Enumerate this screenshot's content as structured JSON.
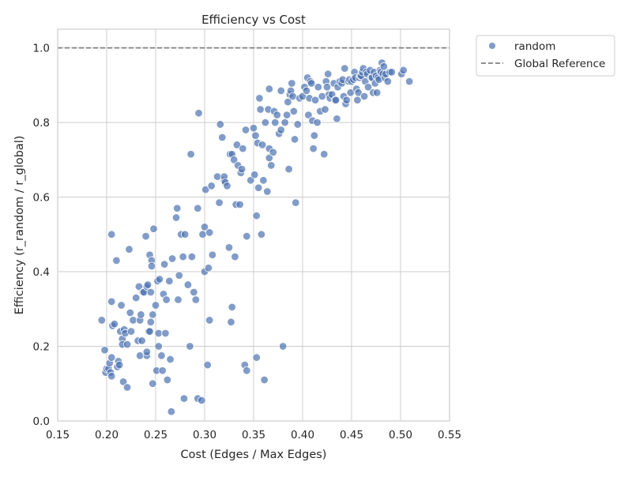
{
  "chart_data": {
    "type": "scatter",
    "title": "Efficiency vs Cost",
    "xlabel": "Cost (Edges / Max Edges)",
    "ylabel": "Efficiency (r_random / r_global)",
    "xlim": [
      0.15,
      0.55
    ],
    "ylim": [
      0.0,
      1.05
    ],
    "xticks": [
      0.15,
      0.2,
      0.25,
      0.3,
      0.35,
      0.4,
      0.45,
      0.5,
      0.55
    ],
    "xtick_labels": [
      "0.15",
      "0.20",
      "0.25",
      "0.30",
      "0.35",
      "0.40",
      "0.45",
      "0.50",
      "0.55"
    ],
    "yticks": [
      0.0,
      0.2,
      0.4,
      0.6,
      0.8,
      1.0
    ],
    "ytick_labels": [
      "0.0",
      "0.2",
      "0.4",
      "0.6",
      "0.8",
      "1.0"
    ],
    "grid": true,
    "legend_position": "outside-top-right",
    "legend": [
      {
        "label": "random",
        "kind": "marker",
        "color": "#4c72b0"
      },
      {
        "label": "Global Reference",
        "kind": "dashed-line",
        "color": "#808080"
      }
    ],
    "reference_line": {
      "name": "Global Reference",
      "y": 1.0,
      "color": "#808080",
      "style": "dashed"
    },
    "series": [
      {
        "name": "random",
        "color": "#4c72b0",
        "points": [
          [
            0.195,
            0.27
          ],
          [
            0.198,
            0.19
          ],
          [
            0.199,
            0.13
          ],
          [
            0.2,
            0.14
          ],
          [
            0.202,
            0.14
          ],
          [
            0.203,
            0.155
          ],
          [
            0.204,
            0.13
          ],
          [
            0.205,
            0.17
          ],
          [
            0.205,
            0.12
          ],
          [
            0.205,
            0.5
          ],
          [
            0.205,
            0.32
          ],
          [
            0.206,
            0.255
          ],
          [
            0.208,
            0.26
          ],
          [
            0.21,
            0.43
          ],
          [
            0.211,
            0.145
          ],
          [
            0.212,
            0.16
          ],
          [
            0.213,
            0.15
          ],
          [
            0.214,
            0.24
          ],
          [
            0.215,
            0.31
          ],
          [
            0.216,
            0.22
          ],
          [
            0.216,
            0.205
          ],
          [
            0.217,
            0.105
          ],
          [
            0.218,
            0.245
          ],
          [
            0.219,
            0.235
          ],
          [
            0.221,
            0.205
          ],
          [
            0.221,
            0.09
          ],
          [
            0.223,
            0.46
          ],
          [
            0.224,
            0.29
          ],
          [
            0.225,
            0.24
          ],
          [
            0.227,
            0.27
          ],
          [
            0.23,
            0.33
          ],
          [
            0.232,
            0.215
          ],
          [
            0.233,
            0.36
          ],
          [
            0.234,
            0.27
          ],
          [
            0.234,
            0.175
          ],
          [
            0.235,
            0.285
          ],
          [
            0.236,
            0.215
          ],
          [
            0.237,
            0.345
          ],
          [
            0.238,
            0.345
          ],
          [
            0.24,
            0.495
          ],
          [
            0.241,
            0.175
          ],
          [
            0.241,
            0.36
          ],
          [
            0.241,
            0.185
          ],
          [
            0.242,
            0.365
          ],
          [
            0.243,
            0.24
          ],
          [
            0.244,
            0.445
          ],
          [
            0.244,
            0.24
          ],
          [
            0.245,
            0.265
          ],
          [
            0.245,
            0.345
          ],
          [
            0.246,
            0.43
          ],
          [
            0.246,
            0.415
          ],
          [
            0.247,
            0.285
          ],
          [
            0.247,
            0.1
          ],
          [
            0.248,
            0.515
          ],
          [
            0.25,
            0.31
          ],
          [
            0.251,
            0.135
          ],
          [
            0.252,
            0.375
          ],
          [
            0.253,
            0.235
          ],
          [
            0.253,
            0.2
          ],
          [
            0.254,
            0.38
          ],
          [
            0.256,
            0.175
          ],
          [
            0.257,
            0.135
          ],
          [
            0.258,
            0.34
          ],
          [
            0.259,
            0.42
          ],
          [
            0.26,
            0.235
          ],
          [
            0.261,
            0.325
          ],
          [
            0.262,
            0.11
          ],
          [
            0.264,
            0.375
          ],
          [
            0.265,
            0.165
          ],
          [
            0.266,
            0.025
          ],
          [
            0.267,
            0.435
          ],
          [
            0.271,
            0.545
          ],
          [
            0.272,
            0.57
          ],
          [
            0.273,
            0.325
          ],
          [
            0.274,
            0.39
          ],
          [
            0.276,
            0.5
          ],
          [
            0.278,
            0.44
          ],
          [
            0.279,
            0.06
          ],
          [
            0.28,
            0.5
          ],
          [
            0.283,
            0.365
          ],
          [
            0.285,
            0.2
          ],
          [
            0.286,
            0.715
          ],
          [
            0.287,
            0.44
          ],
          [
            0.289,
            0.345
          ],
          [
            0.291,
            0.325
          ],
          [
            0.293,
            0.57
          ],
          [
            0.293,
            0.06
          ],
          [
            0.294,
            0.825
          ],
          [
            0.297,
            0.055
          ],
          [
            0.298,
            0.5
          ],
          [
            0.3,
            0.4
          ],
          [
            0.3,
            0.52
          ],
          [
            0.301,
            0.62
          ],
          [
            0.303,
            0.15
          ],
          [
            0.304,
            0.41
          ],
          [
            0.305,
            0.27
          ],
          [
            0.305,
            0.505
          ],
          [
            0.307,
            0.63
          ],
          [
            0.308,
            0.445
          ],
          [
            0.313,
            0.655
          ],
          [
            0.315,
            0.585
          ],
          [
            0.316,
            0.795
          ],
          [
            0.318,
            0.76
          ],
          [
            0.32,
            0.645
          ],
          [
            0.32,
            0.655
          ],
          [
            0.321,
            0.64
          ],
          [
            0.323,
            0.63
          ],
          [
            0.325,
            0.465
          ],
          [
            0.326,
            0.715
          ],
          [
            0.327,
            0.265
          ],
          [
            0.328,
            0.305
          ],
          [
            0.328,
            0.715
          ],
          [
            0.33,
            0.7
          ],
          [
            0.331,
            0.44
          ],
          [
            0.332,
            0.58
          ],
          [
            0.333,
            0.74
          ],
          [
            0.334,
            0.685
          ],
          [
            0.336,
            0.58
          ],
          [
            0.337,
            0.665
          ],
          [
            0.338,
            0.675
          ],
          [
            0.339,
            0.73
          ],
          [
            0.341,
            0.15
          ],
          [
            0.342,
            0.78
          ],
          [
            0.343,
            0.135
          ],
          [
            0.343,
            0.495
          ],
          [
            0.347,
            0.645
          ],
          [
            0.35,
            0.785
          ],
          [
            0.351,
            0.66
          ],
          [
            0.352,
            0.765
          ],
          [
            0.353,
            0.17
          ],
          [
            0.353,
            0.55
          ],
          [
            0.354,
            0.745
          ],
          [
            0.355,
            0.625
          ],
          [
            0.356,
            0.865
          ],
          [
            0.357,
            0.835
          ],
          [
            0.358,
            0.5
          ],
          [
            0.359,
            0.74
          ],
          [
            0.36,
            0.645
          ],
          [
            0.361,
            0.11
          ],
          [
            0.362,
            0.8
          ],
          [
            0.364,
            0.615
          ],
          [
            0.365,
            0.835
          ],
          [
            0.366,
            0.89
          ],
          [
            0.366,
            0.73
          ],
          [
            0.366,
            0.705
          ],
          [
            0.368,
            0.685
          ],
          [
            0.37,
            0.72
          ],
          [
            0.371,
            0.83
          ],
          [
            0.372,
            0.8
          ],
          [
            0.374,
            0.82
          ],
          [
            0.376,
            0.77
          ],
          [
            0.378,
            0.885
          ],
          [
            0.378,
            0.78
          ],
          [
            0.38,
            0.2
          ],
          [
            0.382,
            0.8
          ],
          [
            0.384,
            0.82
          ],
          [
            0.385,
            0.855
          ],
          [
            0.386,
            0.675
          ],
          [
            0.387,
            0.875
          ],
          [
            0.388,
            0.885
          ],
          [
            0.389,
            0.905
          ],
          [
            0.39,
            0.87
          ],
          [
            0.391,
            0.83
          ],
          [
            0.392,
            0.755
          ],
          [
            0.393,
            0.585
          ],
          [
            0.395,
            0.795
          ],
          [
            0.397,
            0.865
          ],
          [
            0.4,
            0.87
          ],
          [
            0.402,
            0.895
          ],
          [
            0.404,
            0.885
          ],
          [
            0.405,
            0.92
          ],
          [
            0.406,
            0.82
          ],
          [
            0.407,
            0.865
          ],
          [
            0.408,
            0.91
          ],
          [
            0.409,
            0.905
          ],
          [
            0.41,
            0.805
          ],
          [
            0.411,
            0.73
          ],
          [
            0.412,
            0.765
          ],
          [
            0.413,
            0.86
          ],
          [
            0.415,
            0.8
          ],
          [
            0.416,
            0.895
          ],
          [
            0.418,
            0.83
          ],
          [
            0.42,
            0.87
          ],
          [
            0.422,
            0.715
          ],
          [
            0.423,
            0.835
          ],
          [
            0.424,
            0.91
          ],
          [
            0.425,
            0.895
          ],
          [
            0.426,
            0.93
          ],
          [
            0.427,
            0.875
          ],
          [
            0.428,
            0.865
          ],
          [
            0.43,
            0.875
          ],
          [
            0.432,
            0.905
          ],
          [
            0.433,
            0.86
          ],
          [
            0.434,
            0.86
          ],
          [
            0.435,
            0.81
          ],
          [
            0.436,
            0.895
          ],
          [
            0.438,
            0.91
          ],
          [
            0.44,
            0.905
          ],
          [
            0.441,
            0.915
          ],
          [
            0.442,
            0.87
          ],
          [
            0.443,
            0.945
          ],
          [
            0.444,
            0.85
          ],
          [
            0.445,
            0.86
          ],
          [
            0.447,
            0.91
          ],
          [
            0.448,
            0.915
          ],
          [
            0.449,
            0.88
          ],
          [
            0.45,
            0.91
          ],
          [
            0.452,
            0.915
          ],
          [
            0.453,
            0.935
          ],
          [
            0.454,
            0.92
          ],
          [
            0.455,
            0.89
          ],
          [
            0.456,
            0.86
          ],
          [
            0.457,
            0.88
          ],
          [
            0.458,
            0.92
          ],
          [
            0.459,
            0.925
          ],
          [
            0.46,
            0.925
          ],
          [
            0.461,
            0.935
          ],
          [
            0.462,
            0.945
          ],
          [
            0.463,
            0.87
          ],
          [
            0.464,
            0.91
          ],
          [
            0.465,
            0.935
          ],
          [
            0.466,
            0.93
          ],
          [
            0.467,
            0.895
          ],
          [
            0.469,
            0.94
          ],
          [
            0.47,
            0.92
          ],
          [
            0.471,
            0.92
          ],
          [
            0.472,
            0.88
          ],
          [
            0.473,
            0.935
          ],
          [
            0.474,
            0.905
          ],
          [
            0.475,
            0.925
          ],
          [
            0.476,
            0.88
          ],
          [
            0.477,
            0.92
          ],
          [
            0.478,
            0.915
          ],
          [
            0.479,
            0.94
          ],
          [
            0.48,
            0.935
          ],
          [
            0.481,
            0.96
          ],
          [
            0.482,
            0.93
          ],
          [
            0.483,
            0.95
          ],
          [
            0.484,
            0.92
          ],
          [
            0.485,
            0.93
          ],
          [
            0.487,
            0.91
          ],
          [
            0.489,
            0.935
          ],
          [
            0.491,
            0.935
          ],
          [
            0.501,
            0.93
          ],
          [
            0.503,
            0.94
          ],
          [
            0.509,
            0.91
          ]
        ]
      }
    ]
  }
}
